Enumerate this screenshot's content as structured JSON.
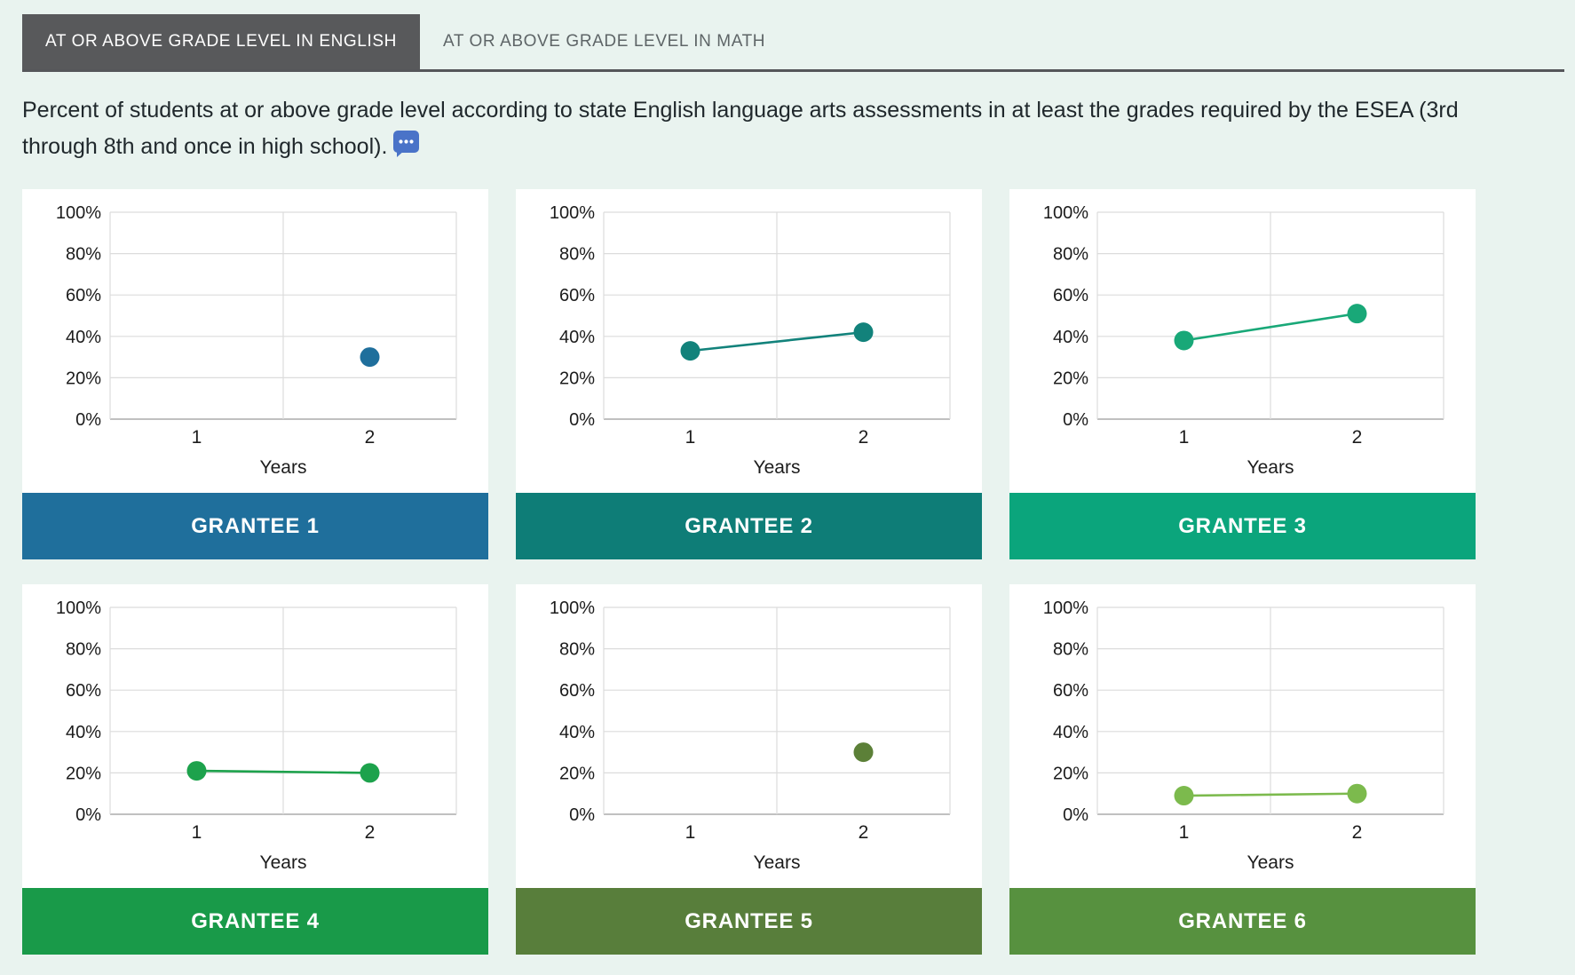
{
  "tabs": [
    {
      "label": "AT OR ABOVE GRADE LEVEL IN ENGLISH",
      "active": true
    },
    {
      "label": "AT OR ABOVE GRADE LEVEL IN MATH",
      "active": false
    }
  ],
  "description": {
    "text": "Percent of students at or above grade level according to state English language arts assessments in at least the grades required by the ESEA (3rd through 8th and once in high school).",
    "tooltip_icon": "comment-icon",
    "tooltip_icon_color": "#4a73c8"
  },
  "colors": {
    "page_background": "#e9f3ef",
    "active_tab_background": "#58595b",
    "tab_underline": "#55565a",
    "gridline": "#dcdcdc",
    "bottom_axis": "#ababab",
    "tick_text": "#1c1c1c"
  },
  "chart_data": {
    "type": "line",
    "x": [
      1,
      2
    ],
    "xtick_labels": [
      "1",
      "2"
    ],
    "xlabel": "Years",
    "ylim": [
      0,
      100
    ],
    "ytick_step": 20,
    "ytick_labels": [
      "0%",
      "20%",
      "40%",
      "60%",
      "80%",
      "100%"
    ],
    "grid": true,
    "legend_position": "none",
    "series": [
      {
        "name": "GRANTEE 1",
        "values": [
          null,
          30
        ],
        "point_color": "#1f6f9c",
        "banner_color": "#1f6f9c"
      },
      {
        "name": "GRANTEE 2",
        "values": [
          33,
          42
        ],
        "point_color": "#12827b",
        "banner_color": "#0e7d77"
      },
      {
        "name": "GRANTEE 3",
        "values": [
          38,
          51
        ],
        "point_color": "#19a878",
        "banner_color": "#0ba57c"
      },
      {
        "name": "GRANTEE 4",
        "values": [
          21,
          20
        ],
        "point_color": "#1da24c",
        "banner_color": "#199a49"
      },
      {
        "name": "GRANTEE 5",
        "values": [
          null,
          30
        ],
        "point_color": "#5c8038",
        "banner_color": "#587e3b"
      },
      {
        "name": "GRANTEE 6",
        "values": [
          9,
          10
        ],
        "point_color": "#7cba4d",
        "banner_color": "#57913f"
      }
    ]
  }
}
